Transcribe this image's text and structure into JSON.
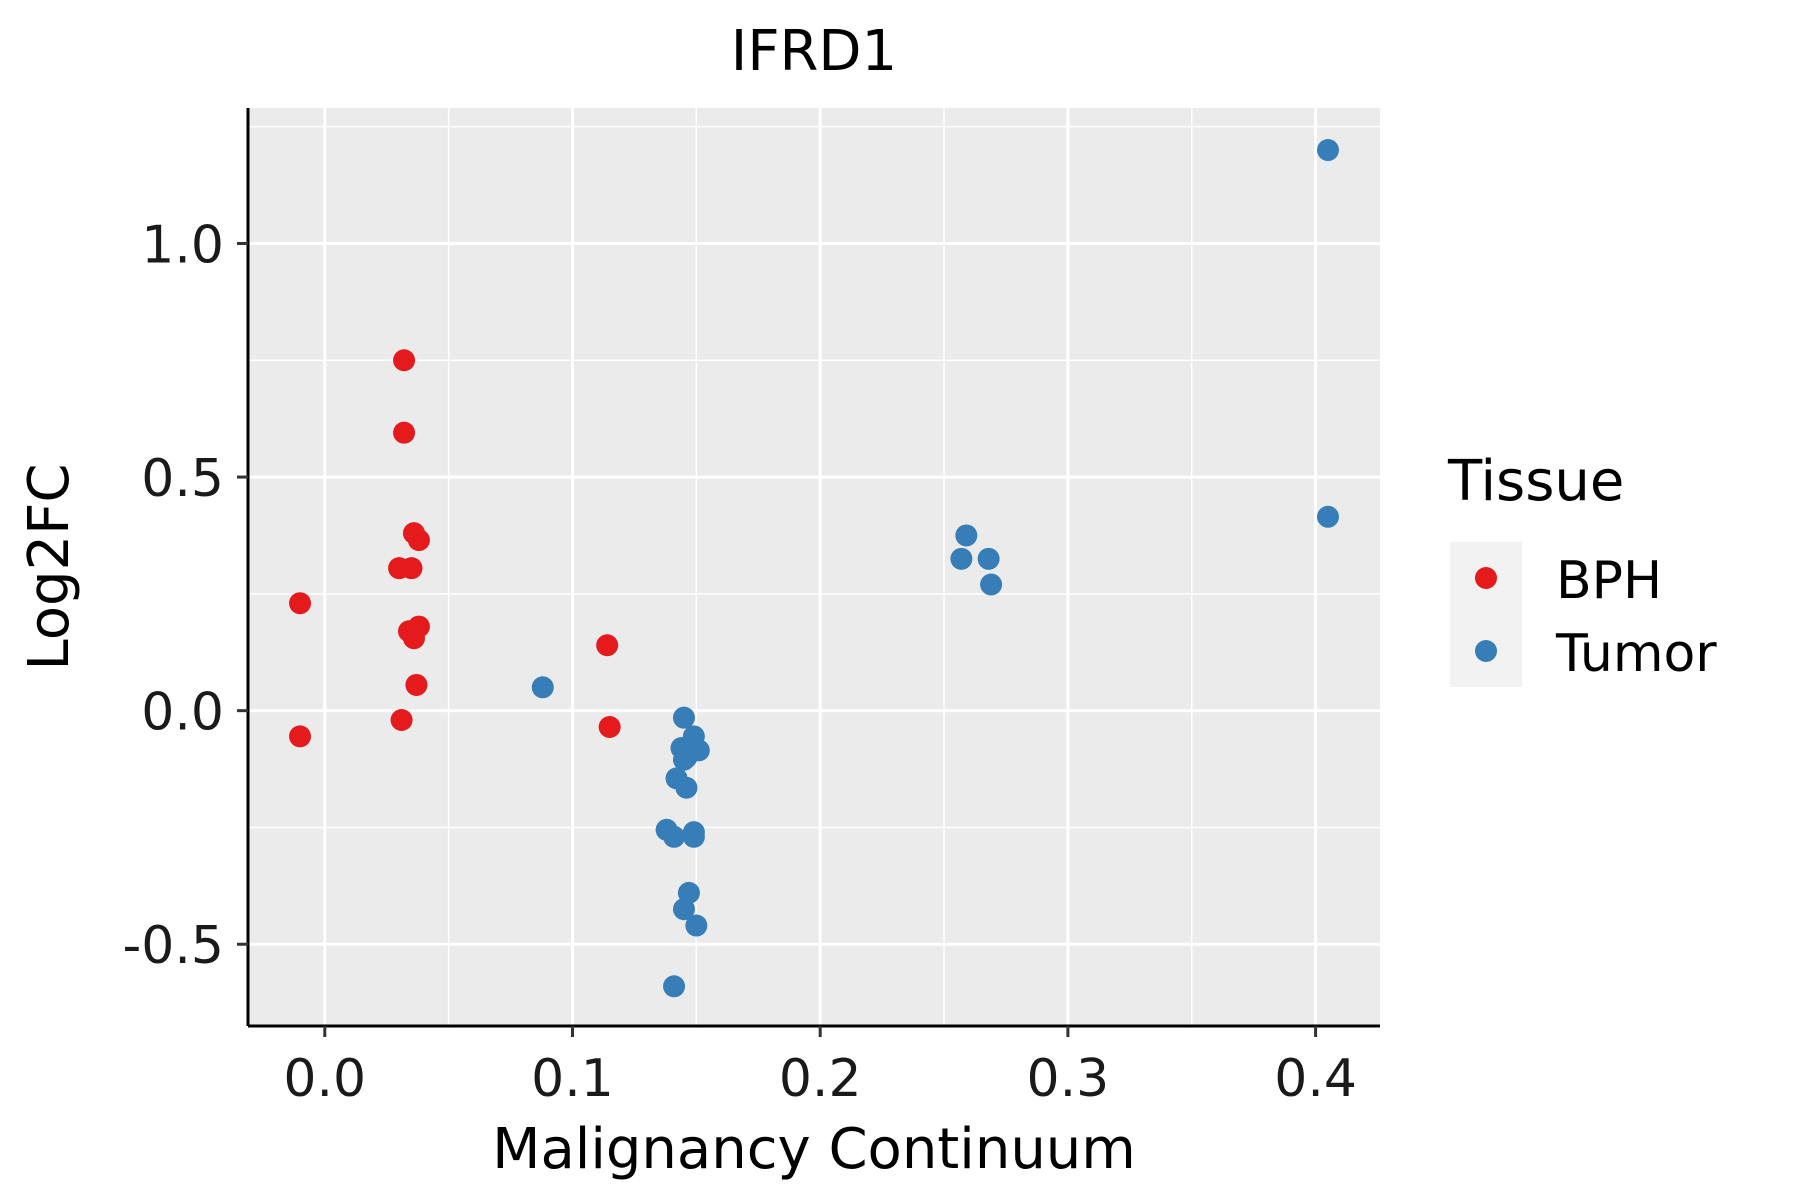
{
  "chart_data": {
    "type": "scatter",
    "title": "IFRD1",
    "xlabel": "Malignancy Continuum",
    "ylabel": "Log2FC",
    "xlim": [
      -0.031,
      0.426
    ],
    "ylim": [
      -0.675,
      1.29
    ],
    "x_ticks": [
      0.0,
      0.1,
      0.2,
      0.3,
      0.4
    ],
    "x_tick_labels": [
      "0.0",
      "0.1",
      "0.2",
      "0.3",
      "0.4"
    ],
    "y_ticks": [
      -0.5,
      0.0,
      0.5,
      1.0
    ],
    "y_tick_labels": [
      "-0.5",
      "0.0",
      "0.5",
      "1.0"
    ],
    "grid": true,
    "background": "#ebebeb",
    "legend": {
      "title": "Tissue",
      "position": "right",
      "entries": [
        {
          "name": "BPH",
          "color": "#e41a1c"
        },
        {
          "name": "Tumor",
          "color": "#377eb8"
        }
      ]
    },
    "series": [
      {
        "name": "BPH",
        "color": "#e41a1c",
        "points": [
          {
            "x": -0.01,
            "y": 0.23
          },
          {
            "x": -0.01,
            "y": -0.055
          },
          {
            "x": 0.032,
            "y": 0.75
          },
          {
            "x": 0.032,
            "y": 0.595
          },
          {
            "x": 0.036,
            "y": 0.38
          },
          {
            "x": 0.038,
            "y": 0.365
          },
          {
            "x": 0.03,
            "y": 0.305
          },
          {
            "x": 0.035,
            "y": 0.305
          },
          {
            "x": 0.038,
            "y": 0.18
          },
          {
            "x": 0.034,
            "y": 0.17
          },
          {
            "x": 0.036,
            "y": 0.155
          },
          {
            "x": 0.037,
            "y": 0.055
          },
          {
            "x": 0.031,
            "y": -0.02
          },
          {
            "x": 0.114,
            "y": 0.14
          },
          {
            "x": 0.115,
            "y": -0.035
          }
        ]
      },
      {
        "name": "Tumor",
        "color": "#377eb8",
        "points": [
          {
            "x": 0.088,
            "y": 0.05
          },
          {
            "x": 0.145,
            "y": -0.015
          },
          {
            "x": 0.149,
            "y": -0.055
          },
          {
            "x": 0.144,
            "y": -0.08
          },
          {
            "x": 0.151,
            "y": -0.085
          },
          {
            "x": 0.147,
            "y": -0.09
          },
          {
            "x": 0.146,
            "y": -0.1
          },
          {
            "x": 0.145,
            "y": -0.105
          },
          {
            "x": 0.142,
            "y": -0.145
          },
          {
            "x": 0.146,
            "y": -0.165
          },
          {
            "x": 0.138,
            "y": -0.255
          },
          {
            "x": 0.149,
            "y": -0.26
          },
          {
            "x": 0.141,
            "y": -0.27
          },
          {
            "x": 0.149,
            "y": -0.27
          },
          {
            "x": 0.147,
            "y": -0.39
          },
          {
            "x": 0.145,
            "y": -0.425
          },
          {
            "x": 0.15,
            "y": -0.46
          },
          {
            "x": 0.141,
            "y": -0.59
          },
          {
            "x": 0.259,
            "y": 0.375
          },
          {
            "x": 0.257,
            "y": 0.325
          },
          {
            "x": 0.268,
            "y": 0.325
          },
          {
            "x": 0.269,
            "y": 0.27
          },
          {
            "x": 0.405,
            "y": 1.2
          },
          {
            "x": 0.405,
            "y": 0.415
          }
        ]
      }
    ]
  }
}
